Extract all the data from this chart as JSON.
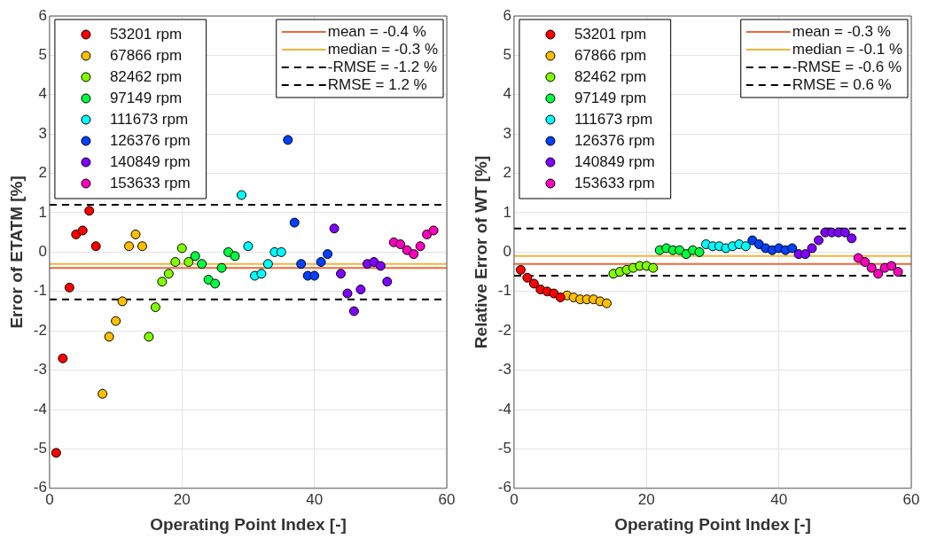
{
  "chart_data": [
    {
      "type": "scatter",
      "xlabel": "Operating Point Index [-]",
      "ylabel": "Error of ETATM [%]",
      "xlim": [
        0,
        60
      ],
      "xticks": [
        0,
        20,
        40,
        60
      ],
      "ylim": [
        -6,
        6
      ],
      "yticks": [
        -6,
        -5,
        -4,
        -3,
        -2,
        -1,
        0,
        1,
        2,
        3,
        4,
        5,
        6
      ],
      "grid": true,
      "legend": "top left",
      "marker": "circle",
      "series": [
        {
          "name": "53201 rpm",
          "color": "#ff0000",
          "x": [
            1,
            2,
            3,
            4,
            5,
            6,
            7
          ],
          "values": [
            -5.1,
            -2.7,
            -0.9,
            0.45,
            0.55,
            1.05,
            0.15
          ]
        },
        {
          "name": "67866 rpm",
          "color": "#ffbf00",
          "x": [
            8,
            9,
            10,
            11,
            12,
            13,
            14
          ],
          "values": [
            -3.6,
            -2.15,
            -1.75,
            -1.25,
            0.15,
            0.45,
            0.15
          ]
        },
        {
          "name": "82462 rpm",
          "color": "#80ff00",
          "x": [
            15,
            16,
            17,
            18,
            19,
            20,
            21
          ],
          "values": [
            -2.15,
            -1.4,
            -0.75,
            -0.55,
            -0.25,
            0.1,
            -0.25
          ]
        },
        {
          "name": "97149 rpm",
          "color": "#00ff40",
          "x": [
            22,
            23,
            24,
            25,
            26,
            27,
            28
          ],
          "values": [
            -0.1,
            -0.3,
            -0.7,
            -0.8,
            -0.4,
            0.0,
            -0.1
          ]
        },
        {
          "name": "111673 rpm",
          "color": "#00ffff",
          "x": [
            29,
            30,
            31,
            32,
            33,
            34,
            35
          ],
          "values": [
            1.45,
            0.15,
            -0.6,
            -0.55,
            -0.3,
            0.0,
            0.0
          ]
        },
        {
          "name": "126376 rpm",
          "color": "#0040ff",
          "x": [
            36,
            37,
            38,
            39,
            40,
            41,
            42
          ],
          "values": [
            2.85,
            0.75,
            -0.3,
            -0.6,
            -0.6,
            -0.25,
            -0.05
          ]
        },
        {
          "name": "140849 rpm",
          "color": "#8000ff",
          "x": [
            43,
            44,
            45,
            46,
            47,
            48,
            49,
            50,
            51
          ],
          "values": [
            0.6,
            -0.55,
            -1.05,
            -1.5,
            -0.95,
            -0.3,
            -0.25,
            -0.35,
            -0.75
          ]
        },
        {
          "name": "153633 rpm",
          "color": "#ff00bf",
          "x": [
            52,
            53,
            54,
            55,
            56,
            57,
            58
          ],
          "values": [
            0.25,
            0.2,
            0.05,
            -0.05,
            0.15,
            0.45,
            0.55
          ]
        }
      ],
      "ref_lines": [
        {
          "axis": "y",
          "value": -0.4,
          "label": "mean = -0.4 %",
          "color": "#ea6a3a",
          "line_style": "solid"
        },
        {
          "axis": "y",
          "value": -0.3,
          "label": "median = -0.3 %",
          "color": "#f2b43c",
          "line_style": "solid"
        },
        {
          "axis": "y",
          "value": -1.2,
          "label": "-RMSE = -1.2 %",
          "color": "#000000",
          "line_style": "dashed"
        },
        {
          "axis": "y",
          "value": 1.2,
          "label": "RMSE = 1.2 %",
          "color": "#000000",
          "line_style": "dashed"
        }
      ]
    },
    {
      "type": "scatter",
      "xlabel": "Operating Point Index [-]",
      "ylabel": "Relative Error of WT [%]",
      "xlim": [
        0,
        60
      ],
      "xticks": [
        0,
        20,
        40,
        60
      ],
      "ylim": [
        -6,
        6
      ],
      "yticks": [
        -6,
        -5,
        -4,
        -3,
        -2,
        -1,
        0,
        1,
        2,
        3,
        4,
        5,
        6
      ],
      "grid": true,
      "legend": "top left",
      "marker": "circle",
      "series": [
        {
          "name": "53201 rpm",
          "color": "#ff0000",
          "x": [
            1,
            2,
            3,
            4,
            5,
            6,
            7
          ],
          "values": [
            -0.45,
            -0.65,
            -0.8,
            -0.95,
            -1.0,
            -1.05,
            -1.15
          ]
        },
        {
          "name": "67866 rpm",
          "color": "#ffbf00",
          "x": [
            8,
            9,
            10,
            11,
            12,
            13,
            14
          ],
          "values": [
            -1.1,
            -1.15,
            -1.2,
            -1.2,
            -1.2,
            -1.25,
            -1.3
          ]
        },
        {
          "name": "82462 rpm",
          "color": "#80ff00",
          "x": [
            15,
            16,
            17,
            18,
            19,
            20,
            21
          ],
          "values": [
            -0.55,
            -0.5,
            -0.45,
            -0.4,
            -0.35,
            -0.35,
            -0.4
          ]
        },
        {
          "name": "97149 rpm",
          "color": "#00ff40",
          "x": [
            22,
            23,
            24,
            25,
            26,
            27,
            28
          ],
          "values": [
            0.05,
            0.1,
            0.05,
            0.05,
            -0.05,
            0.05,
            0.0
          ]
        },
        {
          "name": "111673 rpm",
          "color": "#00ffff",
          "x": [
            29,
            30,
            31,
            32,
            33,
            34,
            35
          ],
          "values": [
            0.2,
            0.15,
            0.15,
            0.1,
            0.15,
            0.2,
            0.15
          ]
        },
        {
          "name": "126376 rpm",
          "color": "#0040ff",
          "x": [
            36,
            37,
            38,
            39,
            40,
            41,
            42
          ],
          "values": [
            0.3,
            0.2,
            0.1,
            0.05,
            0.1,
            0.05,
            0.1
          ]
        },
        {
          "name": "140849 rpm",
          "color": "#8000ff",
          "x": [
            43,
            44,
            45,
            46,
            47,
            48,
            49,
            50,
            51
          ],
          "values": [
            -0.05,
            -0.05,
            0.1,
            0.3,
            0.5,
            0.5,
            0.5,
            0.5,
            0.35
          ]
        },
        {
          "name": "153633 rpm",
          "color": "#ff00bf",
          "x": [
            52,
            53,
            54,
            55,
            56,
            57,
            58
          ],
          "values": [
            -0.15,
            -0.25,
            -0.4,
            -0.55,
            -0.4,
            -0.35,
            -0.5
          ]
        }
      ],
      "ref_lines": [
        {
          "axis": "y",
          "value": -0.3,
          "label": "mean = -0.3 %",
          "color": "#ea6a3a",
          "line_style": "solid"
        },
        {
          "axis": "y",
          "value": -0.1,
          "label": "median = -0.1 %",
          "color": "#f2b43c",
          "line_style": "solid"
        },
        {
          "axis": "y",
          "value": -0.6,
          "label": "-RMSE = -0.6 %",
          "color": "#000000",
          "line_style": "dashed"
        },
        {
          "axis": "y",
          "value": 0.6,
          "label": "RMSE = 0.6 %",
          "color": "#000000",
          "line_style": "dashed"
        }
      ]
    }
  ]
}
